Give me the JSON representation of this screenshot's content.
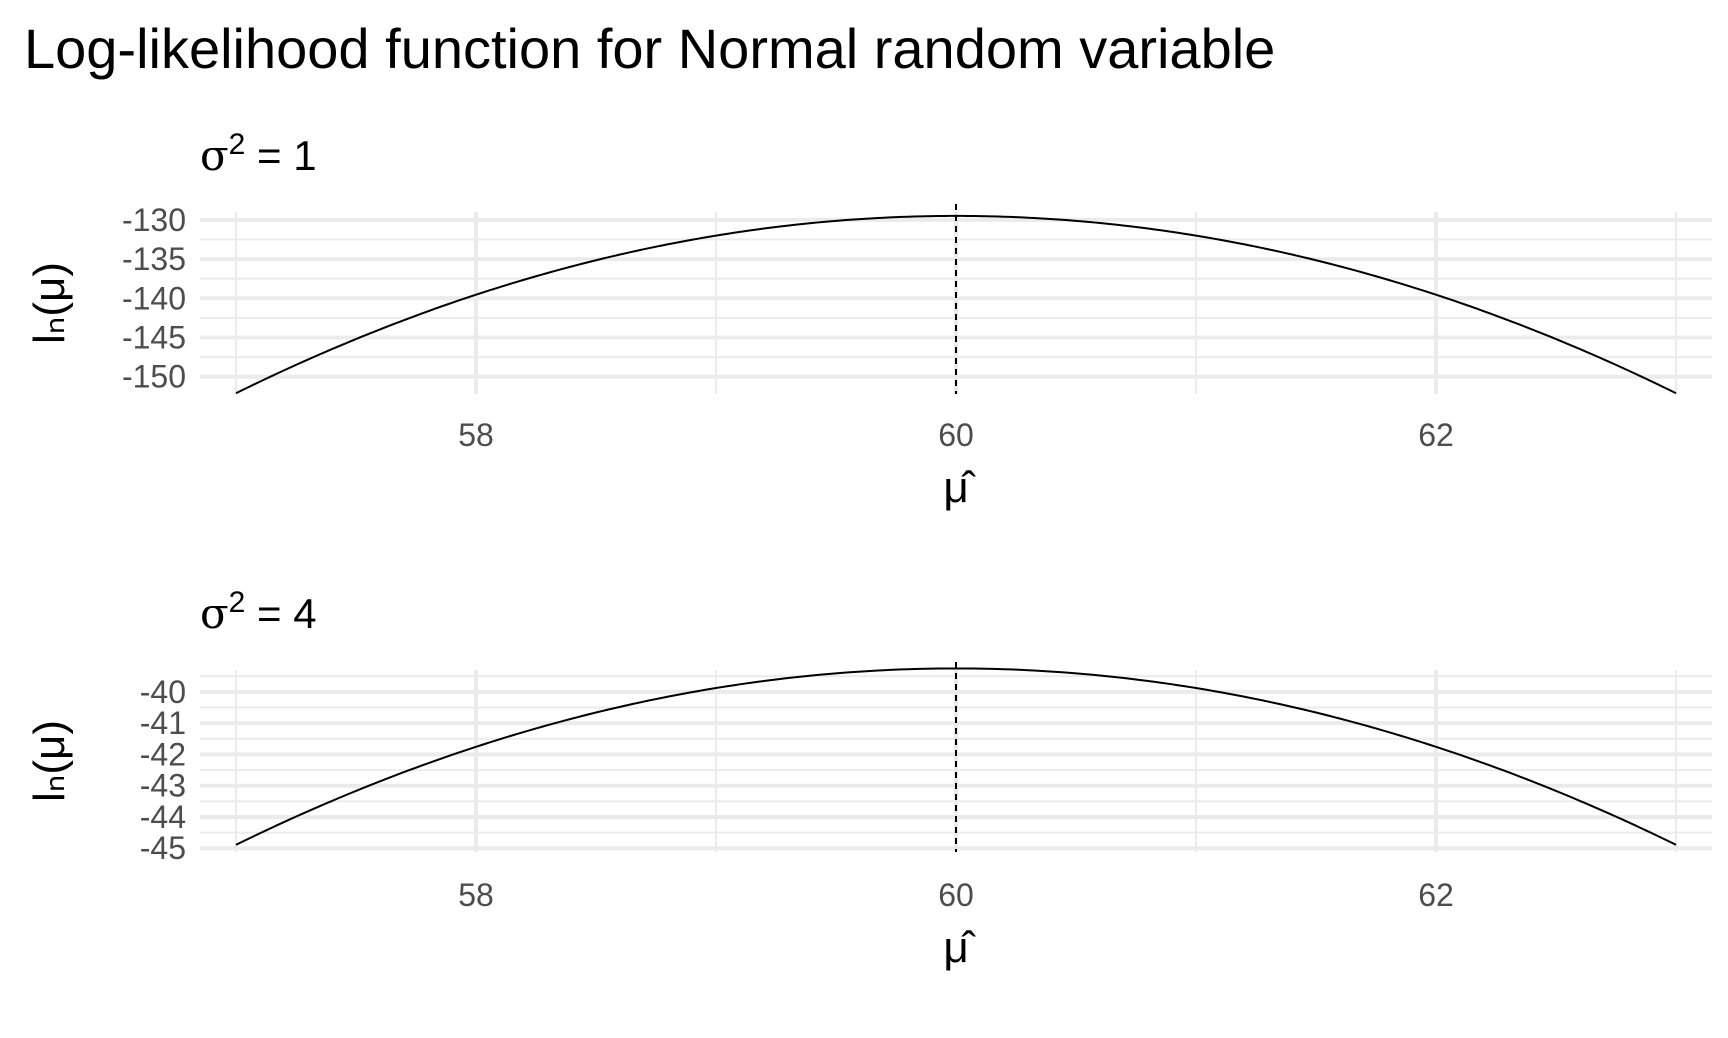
{
  "title": "Log-likelihood function for Normal random variable",
  "colors": {
    "line": "#000000",
    "grid": "#ebebeb",
    "tick_text": "#4d4d4d",
    "background": "#ffffff"
  },
  "chart_data": [
    {
      "type": "line",
      "title": "σ² = 1",
      "title_parts": {
        "symbol": "σ",
        "superscript": "2",
        "rest": " = 1"
      },
      "xlabel": "μ̂",
      "ylabel": "lₙ(μ)",
      "xlim": [
        56.85,
        63.15
      ],
      "ylim": [
        -152.2,
        -129.0
      ],
      "x_ticks": [
        58,
        60,
        62
      ],
      "x_tick_labels": [
        "58",
        "60",
        "62"
      ],
      "y_ticks": [
        -130,
        -135,
        -140,
        -145,
        -150
      ],
      "y_tick_labels": [
        "-130",
        "-135",
        "-140",
        "-145",
        "-150"
      ],
      "grid": true,
      "vline": {
        "x": 60,
        "style": "dashed"
      },
      "series": [
        {
          "x": [
            57,
            57.5,
            58,
            58.5,
            59,
            59.5,
            60,
            60.5,
            61,
            61.5,
            62,
            62.5,
            63
          ],
          "y": [
            -152.1,
            -145.1,
            -139.6,
            -135.1,
            -131.9,
            -130.1,
            -129.5,
            -130.1,
            -131.9,
            -135.1,
            -139.6,
            -145.1,
            -152.1
          ]
        }
      ]
    },
    {
      "type": "line",
      "title": "σ² = 4",
      "title_parts": {
        "symbol": "σ",
        "superscript": "2",
        "rest": " = 4"
      },
      "xlabel": "μ̂",
      "ylabel": "lₙ(μ)",
      "xlim": [
        56.85,
        63.15
      ],
      "ylim": [
        -45.12,
        -39.3
      ],
      "x_ticks": [
        58,
        60,
        62
      ],
      "x_tick_labels": [
        "58",
        "60",
        "62"
      ],
      "y_ticks": [
        -40,
        -41,
        -42,
        -43,
        -44,
        -45
      ],
      "y_tick_labels": [
        "-40",
        "-41",
        "-42",
        "-43",
        "-44",
        "-45"
      ],
      "grid": true,
      "vline": {
        "x": 60,
        "style": "dashed"
      },
      "series": [
        {
          "x": [
            57,
            57.5,
            58,
            58.5,
            59,
            59.5,
            60,
            60.5,
            61,
            61.5,
            62,
            62.5,
            63
          ],
          "y": [
            -44.89,
            -43.14,
            -41.76,
            -40.64,
            -39.84,
            -39.39,
            -39.25,
            -39.39,
            -39.84,
            -40.64,
            -41.76,
            -43.14,
            -44.89
          ]
        }
      ]
    }
  ]
}
